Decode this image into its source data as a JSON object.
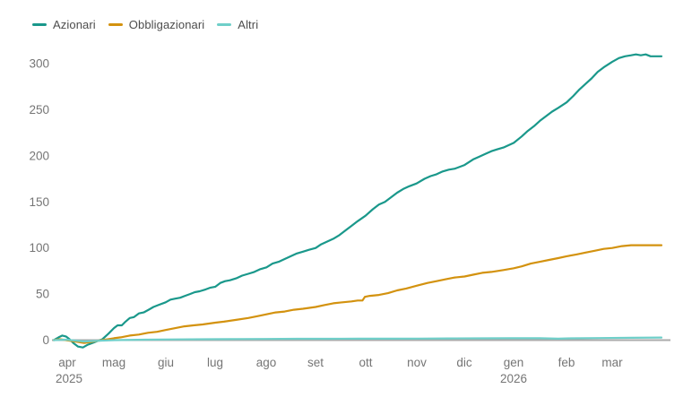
{
  "legend": {
    "items": [
      {
        "label": "Azionari",
        "color": "#1a988b"
      },
      {
        "label": "Obbligazionari",
        "color": "#d3920f"
      },
      {
        "label": "Altri",
        "color": "#6fcfc9"
      }
    ]
  },
  "colors": {
    "axis_line": "#ababab",
    "tick_text": "#757575",
    "background": "#ffffff"
  },
  "chart_data": {
    "type": "line",
    "title": "",
    "xlabel": "",
    "ylabel": "",
    "grid": "zero-line-only",
    "legend_position": "top-left",
    "ylim": [
      -10,
      315
    ],
    "y_ticks": [
      0,
      50,
      100,
      150,
      200,
      250,
      300
    ],
    "x_ticks": [
      {
        "label": "apr",
        "pos": 0.0221
      },
      {
        "label": "mag",
        "pos": 0.0988
      },
      {
        "label": "giu",
        "pos": 0.1844
      },
      {
        "label": "lug",
        "pos": 0.2655
      },
      {
        "label": "ago",
        "pos": 0.3496
      },
      {
        "label": "set",
        "pos": 0.4307
      },
      {
        "label": "ott",
        "pos": 0.5133
      },
      {
        "label": "nov",
        "pos": 0.5973
      },
      {
        "label": "dic",
        "pos": 0.6755
      },
      {
        "label": "gen",
        "pos": 0.7566
      },
      {
        "label": "feb",
        "pos": 0.8437
      },
      {
        "label": "mar",
        "pos": 0.9189
      }
    ],
    "year_labels": [
      {
        "label": "2025",
        "pos": 0.0251
      },
      {
        "label": "2026",
        "pos": 0.7566
      }
    ],
    "monthly_values_note": "values read at month ticks",
    "series": [
      {
        "name": "Azionari",
        "color": "#1a988b",
        "monthly_values": {
          "apr": 0,
          "mag": 14,
          "giu": 40,
          "lug": 56,
          "ago": 79,
          "set": 100,
          "ott": 135,
          "nov": 170,
          "dic": 188,
          "gen": 212,
          "feb": 255,
          "mar": 302,
          "end": 308
        },
        "points": [
          [
            0.0,
            0
          ],
          [
            0.008,
            3
          ],
          [
            0.014,
            5
          ],
          [
            0.02,
            4
          ],
          [
            0.026,
            1
          ],
          [
            0.032,
            -3
          ],
          [
            0.04,
            -7
          ],
          [
            0.048,
            -8
          ],
          [
            0.056,
            -5
          ],
          [
            0.064,
            -3
          ],
          [
            0.072,
            -1
          ],
          [
            0.08,
            1
          ],
          [
            0.09,
            7
          ],
          [
            0.099,
            13
          ],
          [
            0.105,
            16
          ],
          [
            0.112,
            16
          ],
          [
            0.118,
            20
          ],
          [
            0.125,
            24
          ],
          [
            0.132,
            25
          ],
          [
            0.14,
            29
          ],
          [
            0.148,
            30
          ],
          [
            0.156,
            33
          ],
          [
            0.164,
            36
          ],
          [
            0.172,
            38
          ],
          [
            0.184,
            41
          ],
          [
            0.192,
            44
          ],
          [
            0.2,
            45
          ],
          [
            0.208,
            46
          ],
          [
            0.216,
            48
          ],
          [
            0.224,
            50
          ],
          [
            0.232,
            52
          ],
          [
            0.24,
            53
          ],
          [
            0.25,
            55
          ],
          [
            0.258,
            57
          ],
          [
            0.266,
            58
          ],
          [
            0.274,
            62
          ],
          [
            0.282,
            64
          ],
          [
            0.29,
            65
          ],
          [
            0.3,
            67
          ],
          [
            0.31,
            70
          ],
          [
            0.32,
            72
          ],
          [
            0.33,
            74
          ],
          [
            0.34,
            77
          ],
          [
            0.35,
            79
          ],
          [
            0.36,
            83
          ],
          [
            0.37,
            85
          ],
          [
            0.38,
            88
          ],
          [
            0.39,
            91
          ],
          [
            0.4,
            94
          ],
          [
            0.41,
            96
          ],
          [
            0.42,
            98
          ],
          [
            0.431,
            100
          ],
          [
            0.44,
            104
          ],
          [
            0.45,
            107
          ],
          [
            0.46,
            110
          ],
          [
            0.47,
            114
          ],
          [
            0.48,
            119
          ],
          [
            0.49,
            124
          ],
          [
            0.5,
            129
          ],
          [
            0.513,
            135
          ],
          [
            0.525,
            142
          ],
          [
            0.535,
            147
          ],
          [
            0.545,
            150
          ],
          [
            0.555,
            155
          ],
          [
            0.565,
            160
          ],
          [
            0.575,
            164
          ],
          [
            0.585,
            167
          ],
          [
            0.597,
            170
          ],
          [
            0.61,
            175
          ],
          [
            0.62,
            178
          ],
          [
            0.63,
            180
          ],
          [
            0.64,
            183
          ],
          [
            0.65,
            185
          ],
          [
            0.66,
            186
          ],
          [
            0.676,
            190
          ],
          [
            0.69,
            196
          ],
          [
            0.7,
            199
          ],
          [
            0.71,
            202
          ],
          [
            0.72,
            205
          ],
          [
            0.73,
            207
          ],
          [
            0.74,
            209
          ],
          [
            0.757,
            214
          ],
          [
            0.77,
            221
          ],
          [
            0.78,
            227
          ],
          [
            0.79,
            232
          ],
          [
            0.8,
            238
          ],
          [
            0.81,
            243
          ],
          [
            0.82,
            248
          ],
          [
            0.83,
            252
          ],
          [
            0.844,
            258
          ],
          [
            0.855,
            265
          ],
          [
            0.865,
            272
          ],
          [
            0.875,
            278
          ],
          [
            0.885,
            284
          ],
          [
            0.895,
            291
          ],
          [
            0.905,
            296
          ],
          [
            0.919,
            302
          ],
          [
            0.93,
            306
          ],
          [
            0.94,
            308
          ],
          [
            0.95,
            309
          ],
          [
            0.958,
            310
          ],
          [
            0.966,
            309
          ],
          [
            0.974,
            310
          ],
          [
            0.982,
            308
          ],
          [
            0.99,
            308
          ],
          [
            1.0,
            308
          ]
        ]
      },
      {
        "name": "Obbligazionari",
        "color": "#d3920f",
        "monthly_values": {
          "apr": 0,
          "mag": 2,
          "giu": 11,
          "lug": 19,
          "ago": 28,
          "set": 36,
          "ott": 47,
          "nov": 59,
          "dic": 69,
          "gen": 78,
          "feb": 91,
          "mar": 100,
          "end": 103
        },
        "points": [
          [
            0.0,
            0
          ],
          [
            0.01,
            1
          ],
          [
            0.02,
            0
          ],
          [
            0.03,
            -1
          ],
          [
            0.04,
            -2
          ],
          [
            0.05,
            -3
          ],
          [
            0.06,
            -2
          ],
          [
            0.07,
            -1
          ],
          [
            0.08,
            0
          ],
          [
            0.099,
            2
          ],
          [
            0.11,
            3
          ],
          [
            0.125,
            5
          ],
          [
            0.14,
            6
          ],
          [
            0.155,
            8
          ],
          [
            0.17,
            9
          ],
          [
            0.184,
            11
          ],
          [
            0.2,
            13
          ],
          [
            0.215,
            15
          ],
          [
            0.23,
            16
          ],
          [
            0.245,
            17
          ],
          [
            0.266,
            19
          ],
          [
            0.28,
            20
          ],
          [
            0.3,
            22
          ],
          [
            0.32,
            24
          ],
          [
            0.335,
            26
          ],
          [
            0.35,
            28
          ],
          [
            0.365,
            30
          ],
          [
            0.38,
            31
          ],
          [
            0.395,
            33
          ],
          [
            0.41,
            34
          ],
          [
            0.431,
            36
          ],
          [
            0.445,
            38
          ],
          [
            0.46,
            40
          ],
          [
            0.475,
            41
          ],
          [
            0.49,
            42
          ],
          [
            0.5,
            43
          ],
          [
            0.508,
            43
          ],
          [
            0.512,
            47
          ],
          [
            0.52,
            48
          ],
          [
            0.535,
            49
          ],
          [
            0.55,
            51
          ],
          [
            0.565,
            54
          ],
          [
            0.58,
            56
          ],
          [
            0.597,
            59
          ],
          [
            0.615,
            62
          ],
          [
            0.63,
            64
          ],
          [
            0.645,
            66
          ],
          [
            0.66,
            68
          ],
          [
            0.676,
            69
          ],
          [
            0.69,
            71
          ],
          [
            0.705,
            73
          ],
          [
            0.72,
            74
          ],
          [
            0.74,
            76
          ],
          [
            0.757,
            78
          ],
          [
            0.77,
            80
          ],
          [
            0.785,
            83
          ],
          [
            0.8,
            85
          ],
          [
            0.815,
            87
          ],
          [
            0.83,
            89
          ],
          [
            0.844,
            91
          ],
          [
            0.86,
            93
          ],
          [
            0.875,
            95
          ],
          [
            0.89,
            97
          ],
          [
            0.905,
            99
          ],
          [
            0.919,
            100
          ],
          [
            0.935,
            102
          ],
          [
            0.95,
            103
          ],
          [
            0.965,
            103
          ],
          [
            0.98,
            103
          ],
          [
            1.0,
            103
          ]
        ]
      },
      {
        "name": "Altri",
        "color": "#6fcfc9",
        "monthly_values": {
          "apr": 0,
          "mag": 0,
          "giu": 1,
          "lug": 1,
          "ago": 1,
          "set": 1.5,
          "ott": 1.5,
          "nov": 1.7,
          "dic": 1.8,
          "gen": 2,
          "feb": 1.8,
          "mar": 2.3,
          "end": 2.8
        },
        "points": [
          [
            0.0,
            0
          ],
          [
            0.02,
            0.5
          ],
          [
            0.035,
            -0.5
          ],
          [
            0.05,
            -1.5
          ],
          [
            0.065,
            -1
          ],
          [
            0.08,
            -0.5
          ],
          [
            0.1,
            0
          ],
          [
            0.15,
            0.5
          ],
          [
            0.2,
            0.8
          ],
          [
            0.25,
            1.0
          ],
          [
            0.3,
            1.2
          ],
          [
            0.35,
            1.3
          ],
          [
            0.4,
            1.5
          ],
          [
            0.45,
            1.5
          ],
          [
            0.5,
            1.6
          ],
          [
            0.55,
            1.6
          ],
          [
            0.6,
            1.7
          ],
          [
            0.65,
            1.8
          ],
          [
            0.7,
            1.9
          ],
          [
            0.75,
            2.0
          ],
          [
            0.8,
            2.0
          ],
          [
            0.83,
            1.6
          ],
          [
            0.85,
            1.9
          ],
          [
            0.9,
            2.2
          ],
          [
            0.95,
            2.5
          ],
          [
            1.0,
            2.8
          ]
        ]
      }
    ]
  }
}
